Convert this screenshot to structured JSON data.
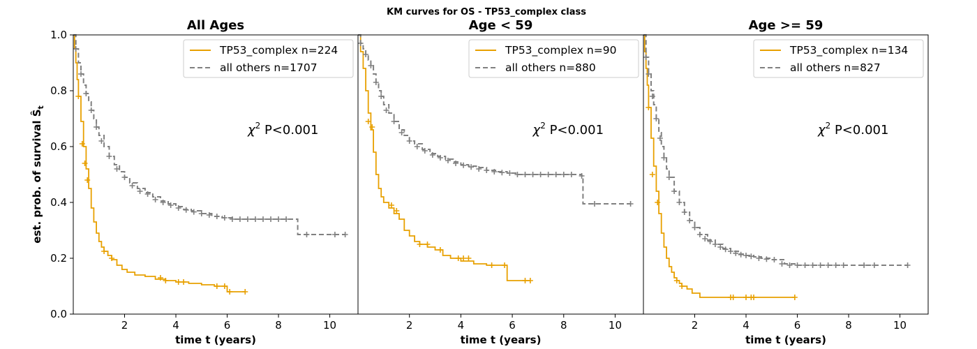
{
  "figure": {
    "suptitle": "KM curves for OS - TP53_complex class",
    "ylabel": "est. prob. of survival Ŝ",
    "ylabel_sub": "t"
  },
  "colors": {
    "tp53": "#e8a000",
    "others": "#808080",
    "axis": "#000000"
  },
  "chart_data": [
    {
      "type": "line",
      "title": "All Ages",
      "xlabel": "time t (years)",
      "xlim": [
        0,
        11.1
      ],
      "ylim": [
        0,
        1
      ],
      "xticks": [
        2,
        4,
        6,
        8,
        10
      ],
      "yticks": [
        0.0,
        0.2,
        0.4,
        0.6,
        0.8,
        1.0
      ],
      "annotation": {
        "chi": "χ",
        "sup": "2",
        "text": " P<0.001",
        "x": 6.8,
        "y": 0.66
      },
      "legend_position": "upper right",
      "series": [
        {
          "name": "TP53_complex n=224",
          "key": "tp53",
          "style": "solid",
          "x": [
            0,
            0.05,
            0.1,
            0.15,
            0.2,
            0.3,
            0.4,
            0.5,
            0.6,
            0.7,
            0.8,
            0.9,
            1.0,
            1.1,
            1.2,
            1.35,
            1.5,
            1.7,
            1.9,
            2.1,
            2.4,
            2.8,
            3.2,
            3.6,
            4.0,
            4.5,
            5.0,
            5.5,
            5.8,
            6.0,
            6.3,
            6.7
          ],
          "y": [
            1.0,
            0.95,
            0.9,
            0.84,
            0.78,
            0.69,
            0.6,
            0.52,
            0.45,
            0.38,
            0.33,
            0.29,
            0.26,
            0.24,
            0.225,
            0.21,
            0.195,
            0.175,
            0.16,
            0.15,
            0.14,
            0.135,
            0.125,
            0.12,
            0.115,
            0.11,
            0.105,
            0.1,
            0.1,
            0.08,
            0.08,
            0.08
          ],
          "censor_x": [
            0.2,
            0.35,
            0.45,
            0.55,
            1.2,
            1.5,
            3.4,
            3.6,
            4.1,
            4.3,
            5.6,
            5.9,
            6.1,
            6.7
          ],
          "censor_y": [
            0.78,
            0.61,
            0.54,
            0.48,
            0.225,
            0.2,
            0.13,
            0.12,
            0.115,
            0.115,
            0.1,
            0.1,
            0.08,
            0.08
          ]
        },
        {
          "name": "all others n=1707",
          "key": "others",
          "style": "dashed",
          "x": [
            0,
            0.1,
            0.2,
            0.3,
            0.4,
            0.5,
            0.6,
            0.7,
            0.8,
            0.9,
            1.0,
            1.2,
            1.4,
            1.6,
            1.8,
            2.0,
            2.2,
            2.5,
            2.8,
            3.1,
            3.4,
            3.7,
            4.0,
            4.3,
            4.6,
            5.0,
            5.4,
            5.8,
            6.2,
            7.0,
            8.0,
            8.7,
            8.75,
            10.6
          ],
          "y": [
            1.0,
            0.95,
            0.9,
            0.86,
            0.82,
            0.79,
            0.76,
            0.73,
            0.7,
            0.67,
            0.64,
            0.6,
            0.565,
            0.535,
            0.51,
            0.49,
            0.47,
            0.45,
            0.435,
            0.42,
            0.405,
            0.395,
            0.385,
            0.375,
            0.37,
            0.36,
            0.35,
            0.345,
            0.34,
            0.34,
            0.34,
            0.34,
            0.285,
            0.285
          ],
          "censor_x": [
            0.1,
            0.3,
            0.5,
            0.7,
            0.9,
            1.1,
            1.4,
            1.7,
            2.0,
            2.3,
            2.6,
            2.9,
            3.2,
            3.5,
            3.8,
            4.1,
            4.4,
            4.7,
            5.0,
            5.3,
            5.6,
            5.9,
            6.2,
            6.5,
            6.8,
            7.1,
            7.4,
            7.7,
            8.0,
            8.3,
            9.1,
            10.2,
            10.6
          ],
          "censor_y": [
            0.95,
            0.86,
            0.79,
            0.73,
            0.67,
            0.62,
            0.565,
            0.52,
            0.49,
            0.46,
            0.44,
            0.43,
            0.41,
            0.4,
            0.39,
            0.38,
            0.373,
            0.366,
            0.36,
            0.355,
            0.35,
            0.345,
            0.34,
            0.34,
            0.34,
            0.34,
            0.34,
            0.34,
            0.34,
            0.34,
            0.285,
            0.285,
            0.285
          ]
        }
      ]
    },
    {
      "type": "line",
      "title": "Age < 59",
      "xlabel": "time t (years)",
      "xlim": [
        0,
        11.1
      ],
      "ylim": [
        0,
        1
      ],
      "xticks": [
        2,
        4,
        6,
        8,
        10
      ],
      "yticks": [
        0.0,
        0.2,
        0.4,
        0.6,
        0.8,
        1.0
      ],
      "annotation": {
        "chi": "χ",
        "sup": "2",
        "text": " P<0.001",
        "x": 6.8,
        "y": 0.66
      },
      "legend_position": "upper right",
      "series": [
        {
          "name": "TP53_complex n=90",
          "key": "tp53",
          "style": "solid",
          "x": [
            0,
            0.1,
            0.2,
            0.3,
            0.4,
            0.5,
            0.6,
            0.7,
            0.8,
            0.9,
            1.0,
            1.2,
            1.4,
            1.6,
            1.8,
            2.0,
            2.2,
            2.4,
            2.7,
            3.0,
            3.3,
            3.6,
            4.0,
            4.5,
            5.0,
            5.8,
            6.3,
            6.7
          ],
          "y": [
            1.0,
            0.94,
            0.88,
            0.8,
            0.72,
            0.66,
            0.58,
            0.5,
            0.45,
            0.42,
            0.4,
            0.38,
            0.36,
            0.34,
            0.3,
            0.28,
            0.26,
            0.25,
            0.24,
            0.23,
            0.21,
            0.2,
            0.19,
            0.18,
            0.175,
            0.12,
            0.12,
            0.12
          ],
          "censor_x": [
            0.4,
            0.55,
            1.3,
            1.5,
            2.4,
            2.7,
            3.2,
            3.9,
            4.1,
            4.3,
            5.2,
            5.7,
            6.5,
            6.7
          ],
          "censor_y": [
            0.69,
            0.67,
            0.39,
            0.37,
            0.25,
            0.25,
            0.23,
            0.2,
            0.2,
            0.2,
            0.175,
            0.175,
            0.12,
            0.12
          ]
        },
        {
          "name": "all others n=880",
          "key": "others",
          "style": "dashed",
          "x": [
            0,
            0.1,
            0.2,
            0.3,
            0.4,
            0.5,
            0.6,
            0.7,
            0.8,
            0.9,
            1.0,
            1.2,
            1.4,
            1.6,
            1.8,
            2.0,
            2.2,
            2.5,
            2.8,
            3.1,
            3.4,
            3.7,
            4.0,
            4.3,
            4.6,
            5.0,
            5.4,
            5.8,
            6.2,
            7.0,
            8.0,
            8.7,
            8.75,
            10.6
          ],
          "y": [
            1.0,
            0.97,
            0.95,
            0.93,
            0.91,
            0.89,
            0.86,
            0.83,
            0.8,
            0.78,
            0.75,
            0.72,
            0.69,
            0.66,
            0.64,
            0.62,
            0.61,
            0.59,
            0.575,
            0.565,
            0.555,
            0.545,
            0.535,
            0.53,
            0.525,
            0.515,
            0.51,
            0.505,
            0.5,
            0.5,
            0.5,
            0.495,
            0.395,
            0.395
          ],
          "censor_x": [
            0.1,
            0.3,
            0.5,
            0.7,
            0.9,
            1.1,
            1.4,
            1.7,
            2.0,
            2.3,
            2.6,
            2.9,
            3.2,
            3.5,
            3.8,
            4.1,
            4.4,
            4.7,
            5.0,
            5.3,
            5.6,
            5.9,
            6.2,
            6.5,
            6.8,
            7.1,
            7.4,
            7.7,
            8.0,
            8.3,
            8.7,
            9.2,
            10.6
          ],
          "censor_y": [
            0.97,
            0.93,
            0.89,
            0.83,
            0.78,
            0.73,
            0.69,
            0.65,
            0.62,
            0.6,
            0.585,
            0.57,
            0.56,
            0.55,
            0.54,
            0.533,
            0.527,
            0.52,
            0.515,
            0.51,
            0.507,
            0.505,
            0.5,
            0.5,
            0.5,
            0.5,
            0.5,
            0.5,
            0.5,
            0.5,
            0.495,
            0.395,
            0.395
          ]
        }
      ]
    },
    {
      "type": "line",
      "title": "Age >= 59",
      "xlabel": "time t (years)",
      "xlim": [
        0,
        11.1
      ],
      "ylim": [
        0,
        1
      ],
      "xticks": [
        2,
        4,
        6,
        8,
        10
      ],
      "yticks": [
        0.0,
        0.2,
        0.4,
        0.6,
        0.8,
        1.0
      ],
      "annotation": {
        "chi": "χ",
        "sup": "2",
        "text": " P<0.001",
        "x": 6.8,
        "y": 0.66
      },
      "legend_position": "upper right",
      "series": [
        {
          "name": "TP53_complex n=134",
          "key": "tp53",
          "style": "solid",
          "x": [
            0,
            0.05,
            0.1,
            0.15,
            0.2,
            0.3,
            0.4,
            0.5,
            0.6,
            0.7,
            0.8,
            0.9,
            1.0,
            1.1,
            1.2,
            1.3,
            1.4,
            1.5,
            1.7,
            1.9,
            2.2,
            2.6,
            3.0,
            3.5,
            4.0,
            5.0,
            5.9
          ],
          "y": [
            1.0,
            0.94,
            0.88,
            0.82,
            0.74,
            0.63,
            0.53,
            0.44,
            0.36,
            0.29,
            0.24,
            0.2,
            0.17,
            0.15,
            0.13,
            0.12,
            0.11,
            0.1,
            0.09,
            0.075,
            0.06,
            0.06,
            0.06,
            0.06,
            0.06,
            0.06,
            0.06
          ],
          "censor_x": [
            0.2,
            0.35,
            0.55,
            1.3,
            1.5,
            3.4,
            3.5,
            4.0,
            4.2,
            4.3,
            5.9
          ],
          "censor_y": [
            0.74,
            0.5,
            0.4,
            0.12,
            0.1,
            0.06,
            0.06,
            0.06,
            0.06,
            0.06,
            0.06
          ]
        },
        {
          "name": "all others n=827",
          "key": "others",
          "style": "dashed",
          "x": [
            0,
            0.1,
            0.2,
            0.3,
            0.4,
            0.5,
            0.6,
            0.7,
            0.8,
            0.9,
            1.0,
            1.2,
            1.4,
            1.6,
            1.8,
            2.0,
            2.2,
            2.5,
            2.8,
            3.1,
            3.4,
            3.7,
            4.0,
            4.3,
            4.6,
            5.0,
            5.5,
            6.0,
            7.0,
            8.0,
            9.0,
            10.3
          ],
          "y": [
            1.0,
            0.92,
            0.86,
            0.8,
            0.75,
            0.7,
            0.65,
            0.6,
            0.56,
            0.52,
            0.49,
            0.44,
            0.4,
            0.365,
            0.335,
            0.31,
            0.285,
            0.265,
            0.25,
            0.235,
            0.225,
            0.215,
            0.21,
            0.205,
            0.2,
            0.195,
            0.18,
            0.175,
            0.175,
            0.175,
            0.175,
            0.175
          ],
          "censor_x": [
            0.1,
            0.2,
            0.35,
            0.5,
            0.65,
            0.8,
            1.0,
            1.2,
            1.4,
            1.6,
            1.8,
            2.0,
            2.2,
            2.4,
            2.6,
            2.8,
            3.0,
            3.2,
            3.4,
            3.6,
            3.8,
            4.0,
            4.2,
            4.5,
            4.8,
            5.1,
            5.4,
            5.7,
            6.0,
            6.3,
            6.6,
            6.9,
            7.2,
            7.5,
            7.8,
            8.6,
            9.0,
            10.3
          ],
          "censor_y": [
            0.92,
            0.86,
            0.78,
            0.7,
            0.63,
            0.56,
            0.49,
            0.44,
            0.4,
            0.365,
            0.335,
            0.31,
            0.285,
            0.27,
            0.26,
            0.25,
            0.24,
            0.232,
            0.225,
            0.218,
            0.213,
            0.21,
            0.207,
            0.2,
            0.197,
            0.195,
            0.18,
            0.175,
            0.175,
            0.175,
            0.175,
            0.175,
            0.175,
            0.175,
            0.175,
            0.175,
            0.175,
            0.175
          ]
        }
      ]
    }
  ]
}
